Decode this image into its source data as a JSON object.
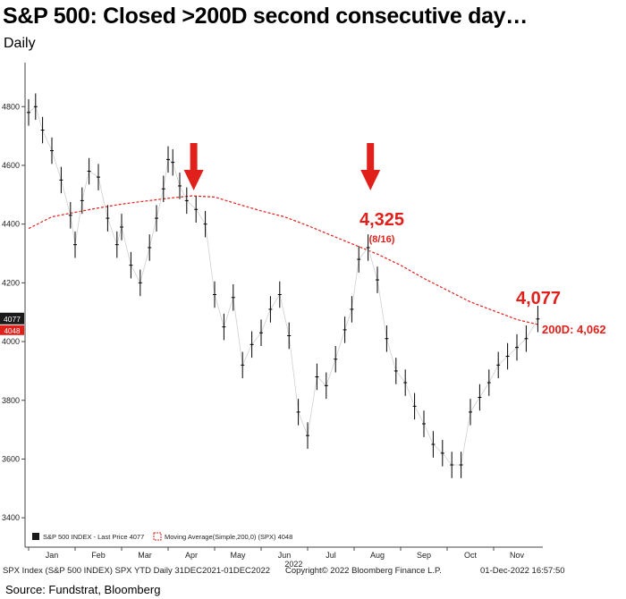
{
  "title": "S&P 500: Closed >200D second consecutive day…",
  "subtitle": "Daily",
  "footer": {
    "left": "SPX Index (S&P 500 INDEX) SPX YTD  Daily 31DEC2021-01DEC2022",
    "center": "Copyright© 2022 Bloomberg Finance L.P.",
    "right": "01-Dec-2022 16:57:50"
  },
  "source": "Source: Fundstrat, Bloomberg",
  "chart_data": {
    "type": "line",
    "ylim": [
      3300,
      4950
    ],
    "yticks": [
      3400,
      3600,
      3800,
      4000,
      4200,
      4400,
      4600,
      4800
    ],
    "ytick_labels": [
      "3400",
      "3600",
      "3800",
      "4000",
      "4200",
      "4400",
      "4600",
      "4800"
    ],
    "months": [
      "Jan",
      "Feb",
      "Mar",
      "Apr",
      "May",
      "Jun",
      "Jul",
      "Aug",
      "Sep",
      "Oct",
      "Nov"
    ],
    "year_label": "2022",
    "price_tag": "4077",
    "ma_tag": "4048",
    "legend": {
      "price": "S&P 500 INDEX - Last Price  4077",
      "ma": "Moving Average(Simple,200,0)  (SPX)  4048"
    },
    "annotations": {
      "peak_value": "4,325",
      "peak_date": "(8/16)",
      "last_value": "4,077",
      "ma_label": "200D: 4,062"
    },
    "colors": {
      "price": "#000000",
      "ma": "#e0201b",
      "annotation": "#e0201b",
      "tag_bg": "#1a1a1a",
      "ma_tag_bg": "#e0201b"
    },
    "series": [
      {
        "name": "S&P 500 INDEX",
        "x": [
          0,
          0.15,
          0.3,
          0.5,
          0.7,
          0.9,
          1.0,
          1.15,
          1.3,
          1.5,
          1.7,
          1.9,
          2.0,
          2.2,
          2.4,
          2.6,
          2.75,
          2.9,
          3.0,
          3.1,
          3.25,
          3.4,
          3.6,
          3.8,
          4.0,
          4.2,
          4.4,
          4.6,
          4.8,
          5.0,
          5.2,
          5.4,
          5.6,
          5.8,
          6.0,
          6.2,
          6.4,
          6.6,
          6.8,
          6.95,
          7.1,
          7.3,
          7.5,
          7.7,
          7.9,
          8.1,
          8.3,
          8.5,
          8.7,
          8.9,
          9.1,
          9.3,
          9.5,
          9.7,
          9.9,
          10.1,
          10.3,
          10.5,
          10.7,
          10.95
        ],
        "y": [
          4780,
          4800,
          4720,
          4650,
          4550,
          4430,
          4330,
          4480,
          4580,
          4560,
          4420,
          4330,
          4390,
          4260,
          4200,
          4320,
          4420,
          4520,
          4620,
          4610,
          4530,
          4480,
          4450,
          4400,
          4160,
          4050,
          4150,
          3920,
          3990,
          4030,
          4110,
          4160,
          4020,
          3760,
          3680,
          3880,
          3850,
          3940,
          4040,
          4110,
          4280,
          4320,
          4210,
          4010,
          3900,
          3860,
          3780,
          3720,
          3650,
          3620,
          3580,
          3580,
          3760,
          3810,
          3860,
          3920,
          3950,
          3980,
          4010,
          4077
        ]
      },
      {
        "name": "Moving Average(Simple,200,0)",
        "x": [
          0,
          0.5,
          1.0,
          1.5,
          2.0,
          2.5,
          3.0,
          3.5,
          4.0,
          4.5,
          5.0,
          5.5,
          6.0,
          6.5,
          7.0,
          7.5,
          8.0,
          8.5,
          9.0,
          9.5,
          10.0,
          10.5,
          10.95
        ],
        "y": [
          4385,
          4425,
          4440,
          4455,
          4468,
          4478,
          4488,
          4496,
          4492,
          4468,
          4445,
          4425,
          4395,
          4362,
          4330,
          4298,
          4260,
          4215,
          4175,
          4135,
          4105,
          4075,
          4058
        ]
      }
    ],
    "arrows_at": [
      3.55,
      7.35
    ]
  }
}
